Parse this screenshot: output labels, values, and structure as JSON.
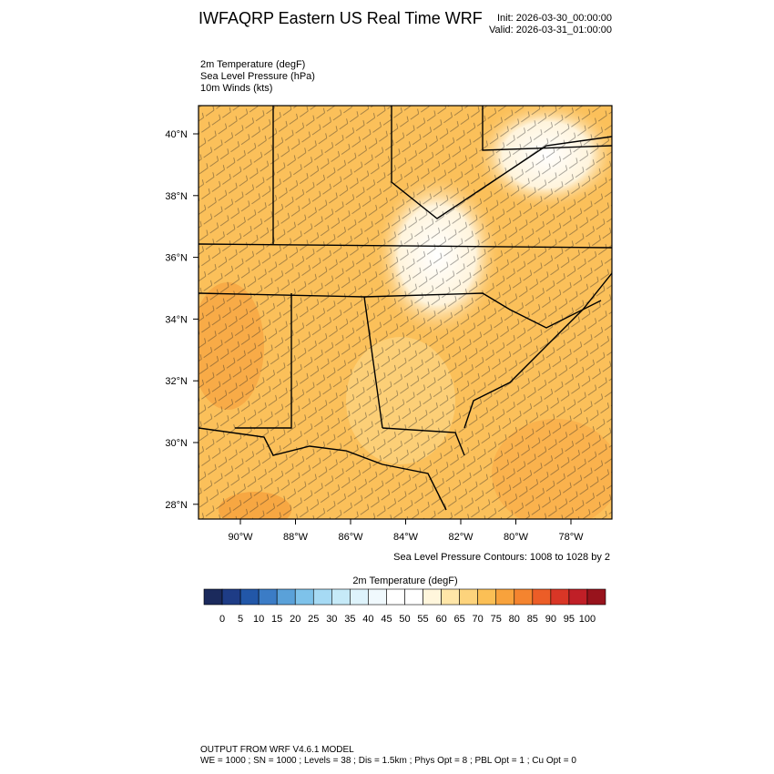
{
  "header": {
    "title": "IWFAQRP Eastern US Real Time WRF",
    "init": "Init: 2026-03-30_00:00:00",
    "valid": "Valid: 2026-03-31_01:00:00"
  },
  "fields": [
    "2m Temperature   (degF)",
    "Sea Level Pressure   (hPa)",
    "10m Winds   (kts)"
  ],
  "map": {
    "lat_labels": [
      "40°N",
      "38°N",
      "36°N",
      "34°N",
      "32°N",
      "30°N",
      "28°N"
    ],
    "lon_labels": [
      "90°W",
      "88°W",
      "86°W",
      "84°W",
      "82°W",
      "80°W",
      "78°W"
    ],
    "contour_note": "Sea Level Pressure Contours: 1008 to 1028 by 2"
  },
  "colorbar": {
    "title": "2m Temperature  (degF)",
    "ticks": [
      0,
      5,
      10,
      15,
      20,
      25,
      30,
      35,
      40,
      45,
      50,
      55,
      60,
      65,
      70,
      75,
      80,
      85,
      90,
      95,
      100
    ],
    "colors": [
      "#1b2a5c",
      "#1e3c86",
      "#2257a8",
      "#3b7cc6",
      "#5aa1d9",
      "#7ec2ea",
      "#a6daf4",
      "#c6eaf8",
      "#def3fb",
      "#f0f9fd",
      "#ffffff",
      "#ffffff",
      "#fff6dc",
      "#ffe6a8",
      "#fdd37c",
      "#fbbf55",
      "#f8a23c",
      "#f4842f",
      "#ec5d27",
      "#d93626",
      "#c01f27",
      "#98131c"
    ]
  },
  "footer": [
    "OUTPUT FROM WRF V4.6.1 MODEL",
    "WE = 1000 ; SN = 1000 ; Levels = 38 ; Dis = 1.5km ; Phys Opt = 8 ; PBL Opt = 1 ; Cu Opt = 0"
  ]
}
